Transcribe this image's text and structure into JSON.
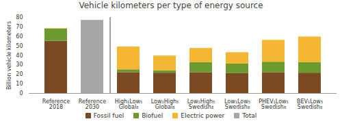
{
  "chart_data": {
    "type": "bar",
    "title": "Vehicle kilometers per type of energy source",
    "y_label": "Billion vehicle kilometers",
    "categories": [
      "Reference\n2018",
      "Reference\n2030",
      "High₁Low₅\nGlobal₈",
      "Low₁High₅\nGlobal₈",
      "Low₁High₅\nSwedish₈",
      "Low₁Low₅\nSwedish₈",
      "PHEV₁Low₅\nSwedish₈",
      "BEV₁Low₅\nSwedish₈"
    ],
    "series": [
      {
        "name": "Fossil fuel",
        "color": "#7b4a23",
        "values": [
          55,
          null,
          22,
          21.5,
          22,
          21,
          22,
          21.5
        ]
      },
      {
        "name": "Biofuel",
        "color": "#6b9a2e",
        "values": [
          13,
          null,
          3,
          2.5,
          10.5,
          10,
          11,
          11
        ]
      },
      {
        "name": "Electric power",
        "color": "#f5b731",
        "values": [
          0.5,
          null,
          24,
          15.5,
          15,
          12,
          23,
          27
        ]
      },
      {
        "name": "Total",
        "color": "#a6a6a6",
        "values": [
          null,
          77,
          null,
          null,
          null,
          null,
          null,
          null
        ]
      }
    ],
    "ylim": [
      0,
      80
    ],
    "yticks": [
      0,
      10,
      20,
      30,
      40,
      50,
      60,
      70,
      80
    ],
    "stacked": true,
    "grid": false,
    "legend": "bottom"
  }
}
